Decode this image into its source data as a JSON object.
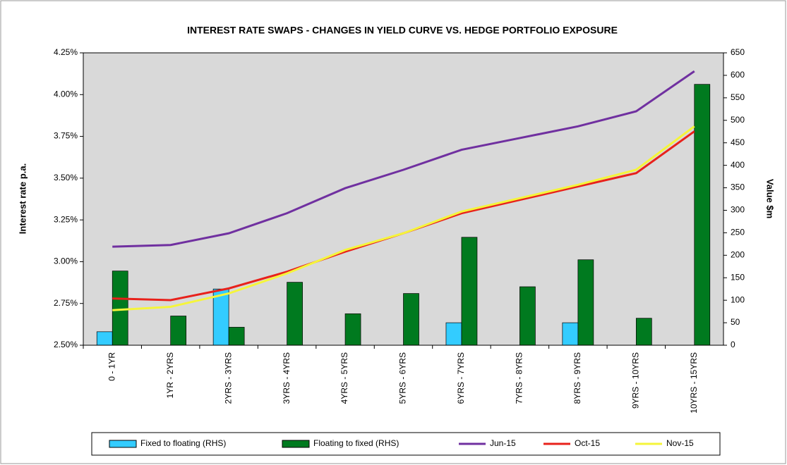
{
  "chart_data": {
    "type": "bar-line",
    "title": "INTEREST RATE SWAPS - CHANGES IN YIELD CURVE VS. HEDGE PORTFOLIO EXPOSURE",
    "y_label": "Interest rate p.a.",
    "y2_label": "Value $m",
    "categories": [
      "0 - 1YR",
      "1YR - 2YRS",
      "2YRS - 3YRS",
      "3YRS - 4YRS",
      "4YRS - 5YRS",
      "5YRS - 6YRS",
      "6YRS - 7YRS",
      "7YRS - 8YRS",
      "8YRS - 9YRS",
      "9YRS - 10YRS",
      "10YRS - 15YRS"
    ],
    "series": [
      {
        "name": "Fixed to floating (RHS)",
        "kind": "bar",
        "axis": "y2",
        "color": "#33ccff",
        "values": [
          30,
          0,
          125,
          0,
          0,
          0,
          50,
          0,
          50,
          0,
          0
        ]
      },
      {
        "name": "Floating to fixed (RHS)",
        "kind": "bar",
        "axis": "y2",
        "color": "#007a1f",
        "values": [
          165,
          65,
          40,
          140,
          70,
          115,
          240,
          130,
          190,
          60,
          580
        ]
      },
      {
        "name": "Jun-15",
        "kind": "line",
        "color": "#7030a0",
        "values": [
          3.09,
          3.1,
          3.17,
          3.29,
          3.44,
          3.55,
          3.67,
          3.74,
          3.81,
          3.9,
          4.14
        ]
      },
      {
        "name": "Oct-15",
        "kind": "line",
        "color": "#e8211b",
        "values": [
          2.78,
          2.77,
          2.84,
          2.94,
          3.06,
          3.17,
          3.29,
          3.37,
          3.45,
          3.53,
          3.78
        ]
      },
      {
        "name": "Nov-15",
        "kind": "line",
        "color": "#f5f53a",
        "values": [
          2.71,
          2.73,
          2.81,
          2.93,
          3.07,
          3.17,
          3.3,
          3.38,
          3.46,
          3.55,
          3.81
        ]
      }
    ],
    "ylim": [
      2.5,
      4.25
    ],
    "yticks": [
      {
        "value": 2.5,
        "label": "2.50%"
      },
      {
        "value": 2.75,
        "label": "2.75%"
      },
      {
        "value": 3.0,
        "label": "3.00%"
      },
      {
        "value": 3.25,
        "label": "3.25%"
      },
      {
        "value": 3.5,
        "label": "3.50%"
      },
      {
        "value": 3.75,
        "label": "3.75%"
      },
      {
        "value": 4.0,
        "label": "4.00%"
      },
      {
        "value": 4.25,
        "label": "4.25%"
      }
    ],
    "y2lim": [
      0,
      650
    ],
    "y2ticks": [
      0,
      50,
      100,
      150,
      200,
      250,
      300,
      350,
      400,
      450,
      500,
      550,
      600,
      650
    ],
    "plot_background": "#d9d9d9"
  }
}
